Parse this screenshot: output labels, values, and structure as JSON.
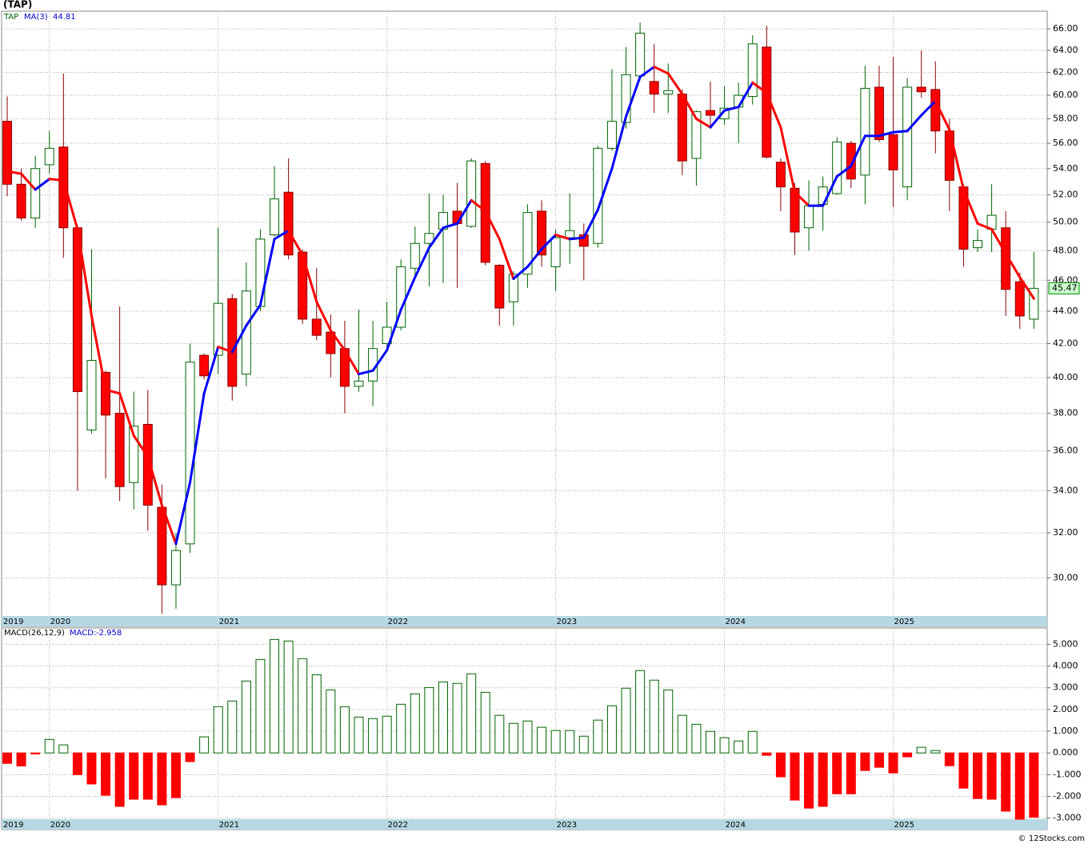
{
  "chart_data": [
    {
      "type": "candlestick",
      "title": "(TAP)",
      "categories": [
        "2019",
        null,
        null,
        "2020",
        null,
        null,
        null,
        null,
        null,
        null,
        null,
        null,
        null,
        null,
        null,
        "2021",
        null,
        null,
        null,
        null,
        null,
        null,
        null,
        null,
        null,
        null,
        null,
        "2022",
        null,
        null,
        null,
        null,
        null,
        null,
        null,
        null,
        null,
        null,
        null,
        "2023",
        null,
        null,
        null,
        null,
        null,
        null,
        null,
        null,
        null,
        null,
        null,
        "2024",
        null,
        null,
        null,
        null,
        null,
        null,
        null,
        null,
        null,
        null,
        null,
        "2025",
        null,
        null,
        null,
        null,
        null,
        null,
        null,
        null,
        null,
        null
      ],
      "series": [
        {
          "name": "TAP",
          "color": "#006400",
          "up_color": "#ffffff",
          "down_color": "#ff0000",
          "open": [
            57.8,
            52.8,
            50.3,
            54.3,
            55.7,
            49.6,
            37.1,
            40.3,
            38,
            34.4,
            37.4,
            33.2,
            29.7,
            31.5,
            41.3,
            41.3,
            44.8,
            40.2,
            44.3,
            49.1,
            52.2,
            47.9,
            43.5,
            42.7,
            41.7,
            39.5,
            39.8,
            42,
            43,
            46.8,
            48.5,
            49.5,
            50.8,
            49.7,
            54.4,
            47,
            44.6,
            46.4,
            50.8,
            46.9,
            48.9,
            49.1,
            48.5,
            55.6,
            57.7,
            61.7,
            61.2,
            60.1,
            60.1,
            54.8,
            58.7,
            58,
            59,
            59.9,
            64.3,
            54.5,
            52.5,
            49.6,
            51.3,
            52.1,
            56,
            53.5,
            60.7,
            56.7,
            52.6,
            60.7,
            60.5,
            57,
            52.6,
            48.2,
            49.5,
            49.6,
            45.9,
            43.5
          ],
          "high": [
            59.9,
            54,
            55,
            57,
            61.9,
            49.8,
            48.1,
            40.4,
            44.3,
            39.2,
            39.3,
            34.3,
            32,
            42,
            41.4,
            49.6,
            45.1,
            47.2,
            49.5,
            54.2,
            54.8,
            48.1,
            46.8,
            43.8,
            43.4,
            44.1,
            43.4,
            44.6,
            47.4,
            49.7,
            52.1,
            52,
            52.9,
            54.8,
            54.6,
            47.1,
            46.6,
            51.3,
            51.6,
            49.5,
            52.1,
            49.9,
            55.8,
            62.3,
            64.3,
            66.6,
            64.6,
            62.8,
            60.5,
            58.7,
            61.2,
            60.8,
            61.1,
            65.4,
            66.3,
            54.8,
            52.9,
            53.1,
            53.4,
            56.5,
            56.2,
            62.6,
            62.6,
            63.4,
            61.5,
            64,
            63,
            58,
            52.8,
            49.5,
            52.8,
            50.8,
            46.5,
            47.9
          ],
          "low": [
            51.9,
            50.1,
            49.6,
            53.6,
            47.5,
            34,
            36.9,
            34.6,
            33.5,
            33.1,
            32.1,
            28.5,
            28.7,
            31.1,
            39.9,
            40.2,
            38.7,
            39.5,
            44,
            49,
            47.4,
            43.2,
            42.2,
            40,
            38,
            39.2,
            38.4,
            41.6,
            42.8,
            46.1,
            45.6,
            45.8,
            45.5,
            49.6,
            47,
            43.1,
            43.1,
            45.5,
            46.9,
            45.3,
            47.1,
            46,
            48.2,
            55.4,
            57.2,
            61.3,
            58.5,
            58.5,
            53.5,
            52.7,
            57.4,
            57.5,
            56,
            59.2,
            54.8,
            50.8,
            47.7,
            48,
            49.4,
            52,
            52.5,
            51.3,
            56.1,
            51.1,
            51.6,
            59.8,
            55.2,
            50.8,
            46.9,
            47.9,
            47.9,
            43.7,
            42.9,
            42.9
          ],
          "close": [
            52.8,
            50.3,
            54,
            55.6,
            49.6,
            39.2,
            41,
            37.9,
            34.2,
            37.3,
            33.3,
            29.7,
            31.2,
            40.9,
            40.1,
            44.5,
            39.5,
            45.3,
            48.8,
            51.7,
            47.7,
            43.5,
            42.5,
            41.4,
            39.5,
            39.8,
            41.7,
            43,
            46.9,
            48.5,
            49.2,
            50.7,
            49.9,
            54.6,
            47.2,
            44.2,
            46.4,
            50.7,
            47.7,
            48.9,
            49.4,
            48.3,
            55.6,
            57.8,
            61.8,
            65.6,
            60.1,
            60.4,
            54.6,
            58.6,
            58.3,
            58.9,
            60,
            64.6,
            54.9,
            52.6,
            49.3,
            51.2,
            52.6,
            56.1,
            53.2,
            60.6,
            56.3,
            53.9,
            60.7,
            60.3,
            57,
            53.1,
            48.1,
            48.7,
            50.5,
            45.4,
            43.7,
            45.47
          ]
        },
        {
          "name": "MA(3)",
          "type": "line",
          "up_color": "#0000ff",
          "down_color": "#ff0000",
          "values": [
            53.8,
            53.6,
            52.4,
            53.2,
            53.1,
            49.5,
            43.7,
            39.3,
            39.1,
            36.8,
            35.7,
            33.3,
            31.5,
            34.4,
            39.1,
            41.8,
            41.5,
            43.1,
            44.4,
            48.8,
            49.4,
            47.7,
            44.6,
            42.8,
            41.6,
            40.2,
            40.4,
            41.6,
            44.1,
            46.2,
            48.2,
            49.6,
            49.9,
            51.6,
            50.8,
            48.8,
            46.1,
            46.9,
            48.1,
            49.1,
            48.8,
            48.9,
            50.9,
            54,
            58.2,
            61.6,
            62.5,
            61.9,
            60.1,
            58,
            57.3,
            58.7,
            59,
            61.1,
            60.2,
            57.3,
            52.2,
            51.2,
            51.2,
            53.4,
            54.2,
            56.6,
            56.6,
            56.9,
            57,
            58.3,
            59.5,
            57.1,
            52.4,
            49.9,
            49.5,
            47.8,
            46.2,
            44.81
          ]
        }
      ],
      "ylim": [
        28.4,
        67.7
      ],
      "log_scale": true,
      "grid": true,
      "yticks": [
        {
          "value": 30,
          "label": "30.00"
        },
        {
          "value": 32,
          "label": "32.00"
        },
        {
          "value": 34,
          "label": "34.00"
        },
        {
          "value": 36,
          "label": "36.00"
        },
        {
          "value": 38,
          "label": "38.00"
        },
        {
          "value": 40,
          "label": "40.00"
        },
        {
          "value": 42,
          "label": "42.00"
        },
        {
          "value": 44,
          "label": "44.00"
        },
        {
          "value": 46,
          "label": "46.00"
        },
        {
          "value": 48,
          "label": "48.00"
        },
        {
          "value": 50,
          "label": "50.00"
        },
        {
          "value": 52,
          "label": "52.00"
        },
        {
          "value": 54,
          "label": "54.00"
        },
        {
          "value": 56,
          "label": "56.00"
        },
        {
          "value": 58,
          "label": "58.00"
        },
        {
          "value": 60,
          "label": "60.00"
        },
        {
          "value": 62,
          "label": "62.00"
        },
        {
          "value": 64,
          "label": "64.00"
        },
        {
          "value": 66,
          "label": "66.00"
        }
      ]
    },
    {
      "type": "bar",
      "title": "MACD(26,12,9)",
      "value_caption": "MACD:",
      "up_color": "#006400",
      "down_color": "#ff0000",
      "values": [
        -0.48,
        -0.6,
        -0.05,
        0.62,
        0.37,
        -1,
        -1.43,
        -1.95,
        -2.46,
        -2.13,
        -2.13,
        -2.39,
        -2.06,
        -0.4,
        0.74,
        2.13,
        2.39,
        3.31,
        4.3,
        5.22,
        5.15,
        4.34,
        3.6,
        2.9,
        2.13,
        1.65,
        1.58,
        1.69,
        2.24,
        2.72,
        3.01,
        3.27,
        3.2,
        3.64,
        2.79,
        1.73,
        1.36,
        1.47,
        1.18,
        1.03,
        1.03,
        0.77,
        1.51,
        2.17,
        2.98,
        3.79,
        3.35,
        2.9,
        1.73,
        1.32,
        0.99,
        0.7,
        0.55,
        0.99,
        -0.11,
        -1.1,
        -2.17,
        -2.54,
        -2.46,
        -1.88,
        -1.88,
        -0.81,
        -0.66,
        -0.92,
        -0.18,
        0.26,
        0.11,
        -0.59,
        -1.62,
        -2.1,
        -2.13,
        -2.68,
        -3.05,
        -2.958
      ],
      "ylim": [
        -3.05,
        5.75
      ],
      "grid": true,
      "yticks": [
        {
          "value": -3,
          "label": "-3.000"
        },
        {
          "value": -2,
          "label": "-2.000"
        },
        {
          "value": -1,
          "label": "-1.000"
        },
        {
          "value": 0,
          "label": "0.000"
        },
        {
          "value": 1,
          "label": "1.000"
        },
        {
          "value": 2,
          "label": "2.000"
        },
        {
          "value": 3,
          "label": "3.000"
        },
        {
          "value": 4,
          "label": "4.000"
        },
        {
          "value": 5,
          "label": "5.000"
        }
      ]
    }
  ],
  "footer": "© 12Stocks.com"
}
